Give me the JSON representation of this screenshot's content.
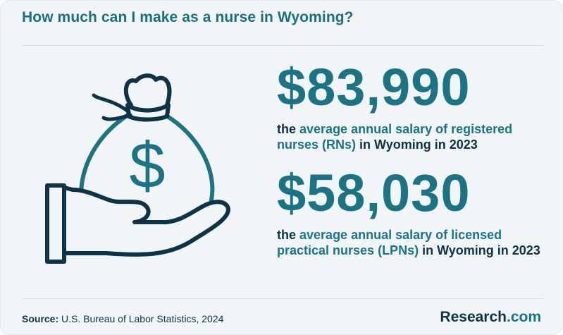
{
  "header": {
    "title": "How much can I make as a nurse in Wyoming?"
  },
  "stats": [
    {
      "value": "$83,990",
      "desc_prefix": "the ",
      "desc_highlight": "average annual salary of registered nurses (RNs)",
      "desc_suffix": " in Wyoming in 2023"
    },
    {
      "value": "$58,030",
      "desc_prefix": "the ",
      "desc_highlight": "average annual salary of licensed practical nurses (LPNs)",
      "desc_suffix": " in Wyoming in 2023"
    }
  ],
  "footer": {
    "source_label": "Source:",
    "source_text": " U.S. Bureau of Labor Statistics, 2024",
    "brand_name": "Research",
    "brand_tld": ".com"
  },
  "illustration": {
    "icon": "money-bag-in-hand-icon",
    "symbol": "$"
  },
  "colors": {
    "teal": "#1b7384",
    "navy": "#0e3346",
    "background": "#f1f5f7"
  }
}
